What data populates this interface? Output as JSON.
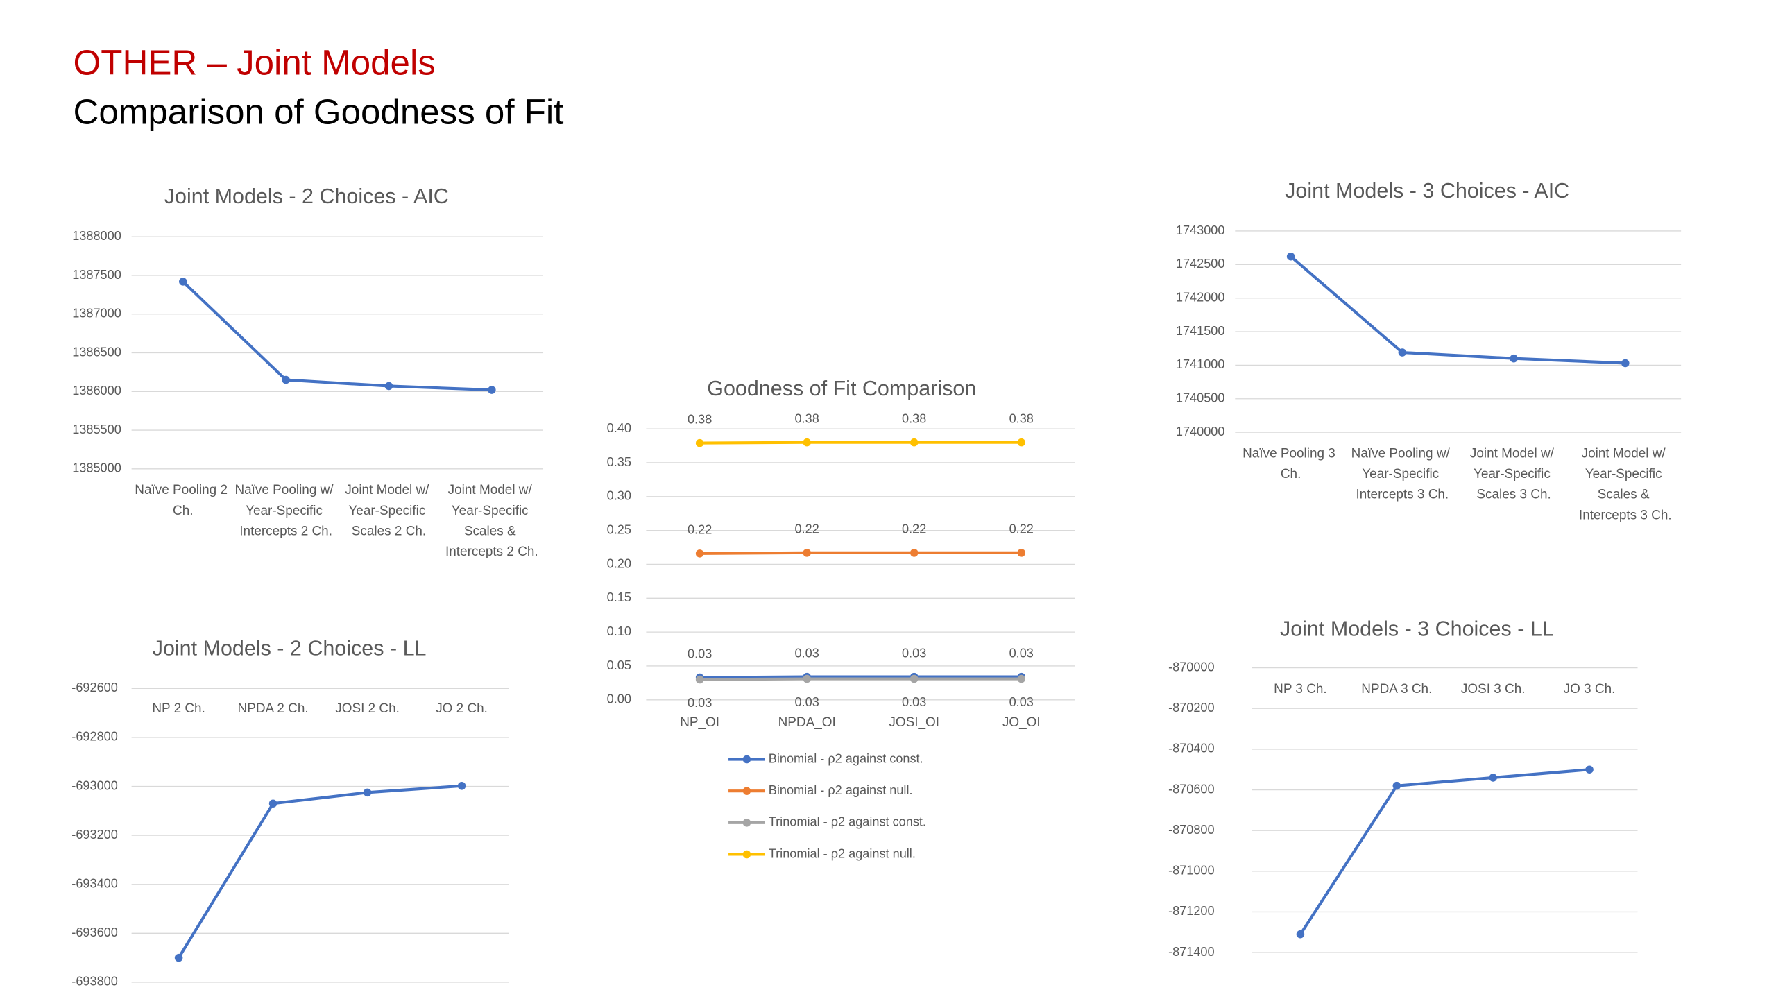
{
  "title": "OTHER – Joint Models",
  "subtitle": "Comparison of Goodness of Fit",
  "chart_data": [
    {
      "type": "line",
      "title": "Joint Models - 2 Choices - AIC",
      "categories": [
        "Naïve Pooling 2 Ch.",
        "Naïve Pooling w/ Year-Specific Intercepts 2 Ch.",
        "Joint Model w/ Year-Specific Scales 2 Ch.",
        "Joint Model w/ Year-Specific Scales & Intercepts 2 Ch."
      ],
      "values": [
        1387420,
        1386150,
        1386070,
        1386020
      ],
      "color": "#4472c4",
      "ylim": [
        1385000,
        1388000
      ],
      "yticks": [
        1385000,
        1385500,
        1386000,
        1386500,
        1387000,
        1387500,
        1388000
      ],
      "grid": true
    },
    {
      "type": "line",
      "title": "Joint Models - 2 Choices - LL",
      "categories": [
        "NP 2 Ch.",
        "NPDA 2 Ch.",
        "JOSI 2 Ch.",
        "JO 2 Ch."
      ],
      "values": [
        -693700,
        -693070,
        -693025,
        -692998
      ],
      "color": "#4472c4",
      "ylim": [
        -693800,
        -692600
      ],
      "yticks": [
        -693800,
        -693600,
        -693400,
        -693200,
        -693000,
        -692800,
        -692600
      ],
      "grid": true
    },
    {
      "type": "line",
      "title": "Goodness of Fit Comparison",
      "categories": [
        "NP_OI",
        "NPDA_OI",
        "JOSI_OI",
        "JO_OI"
      ],
      "series": [
        {
          "name": "Binomial - ρ2 against const.",
          "color": "#4472c4",
          "values": [
            0.033,
            0.034,
            0.034,
            0.034
          ],
          "value_labels": [
            "0.03",
            "0.03",
            "0.03",
            "0.03"
          ]
        },
        {
          "name": "Binomial - ρ2 against null.",
          "color": "#ed7d31",
          "values": [
            0.216,
            0.217,
            0.217,
            0.217
          ],
          "value_labels": [
            "0.22",
            "0.22",
            "0.22",
            "0.22"
          ]
        },
        {
          "name": "Trinomial - ρ2 against const.",
          "color": "#a5a5a5",
          "values": [
            0.03,
            0.031,
            0.031,
            0.031
          ],
          "value_labels": [
            "0.03",
            "0.03",
            "0.03",
            "0.03"
          ]
        },
        {
          "name": "Trinomial - ρ2 against null.",
          "color": "#ffc000",
          "values": [
            0.379,
            0.38,
            0.38,
            0.38
          ],
          "value_labels": [
            "0.38",
            "0.38",
            "0.38",
            "0.38"
          ]
        }
      ],
      "ylim": [
        0,
        0.4
      ],
      "yticks": [
        {
          "value": 0,
          "label": "0.00"
        },
        {
          "value": 0.05,
          "label": "0.05"
        },
        {
          "value": 0.1,
          "label": "0.10"
        },
        {
          "value": 0.15,
          "label": "0.15"
        },
        {
          "value": 0.2,
          "label": "0.20"
        },
        {
          "value": 0.25,
          "label": "0.25"
        },
        {
          "value": 0.3,
          "label": "0.30"
        },
        {
          "value": 0.35,
          "label": "0.35"
        },
        {
          "value": 0.4,
          "label": "0.40"
        }
      ],
      "grid": true,
      "legend": "bottom"
    },
    {
      "type": "line",
      "title": "Joint Models - 3 Choices - AIC",
      "categories": [
        "Naïve Pooling 3 Ch.",
        "Naïve Pooling w/ Year-Specific Intercepts 3 Ch.",
        "Joint Model w/ Year-Specific Scales 3 Ch.",
        "Joint Model w/ Year-Specific Scales & Intercepts 3 Ch."
      ],
      "values": [
        1742620,
        1741190,
        1741100,
        1741030
      ],
      "color": "#4472c4",
      "ylim": [
        1740000,
        1743000
      ],
      "yticks": [
        1740000,
        1740500,
        1741000,
        1741500,
        1742000,
        1742500,
        1743000
      ],
      "grid": true
    },
    {
      "type": "line",
      "title": "Joint Models - 3 Choices - LL",
      "categories": [
        "NP 3 Ch.",
        "NPDA 3 Ch.",
        "JOSI 3 Ch.",
        "JO 3 Ch."
      ],
      "values": [
        -871310,
        -870580,
        -870540,
        -870500
      ],
      "color": "#4472c4",
      "ylim": [
        -871400,
        -870000
      ],
      "yticks": [
        -871400,
        -871200,
        -871000,
        -870800,
        -870600,
        -870400,
        -870200,
        -870000
      ],
      "grid": true
    }
  ]
}
